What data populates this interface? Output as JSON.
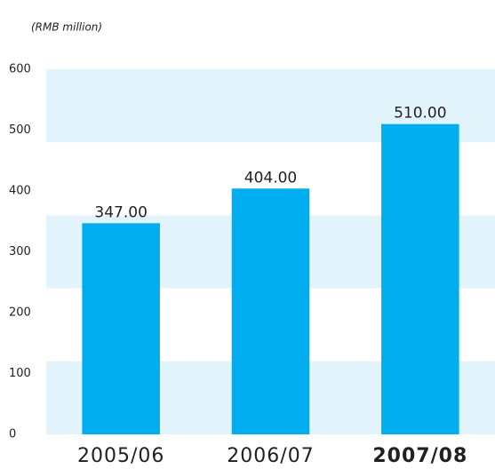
{
  "chart_data": {
    "type": "bar",
    "title": "(RMB million)",
    "categories": [
      "2005/06",
      "2006/07",
      "2007/08"
    ],
    "values": [
      347,
      404,
      510
    ],
    "value_labels": [
      "347.00",
      "404.00",
      "510.00"
    ],
    "color": "#00aeef",
    "ylim": [
      0,
      600
    ],
    "yticks": [
      0,
      100,
      200,
      300,
      400,
      500,
      600
    ]
  }
}
